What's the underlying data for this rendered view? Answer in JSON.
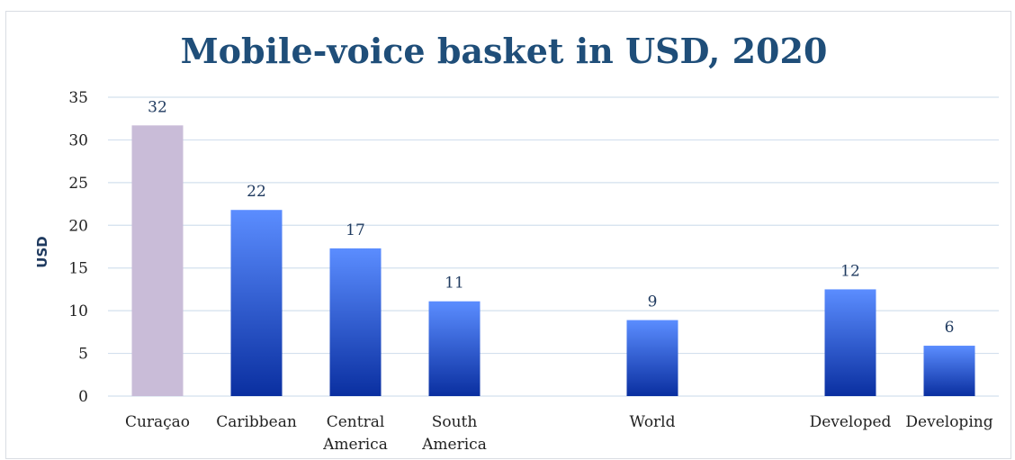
{
  "chart_data": {
    "type": "bar",
    "title": "Mobile-voice basket in USD, 2020",
    "ylabel": "USD",
    "ylim": [
      0,
      35
    ],
    "yticks": [
      0,
      5,
      10,
      15,
      20,
      25,
      30,
      35
    ],
    "grid": true,
    "categories": [
      [
        "Curaçao"
      ],
      [
        "Caribbean"
      ],
      [
        "Central",
        "America"
      ],
      [
        "South",
        "America"
      ],
      [],
      [
        "World"
      ],
      [],
      [
        "Developed"
      ],
      [
        "Developing"
      ]
    ],
    "values": [
      31.7,
      21.8,
      17.3,
      11.1,
      null,
      8.9,
      null,
      12.5,
      5.9
    ],
    "labels": [
      "32",
      "22",
      "17",
      "11",
      "",
      "9",
      "",
      "12",
      "6"
    ],
    "colors": {
      "highlight": "#c9bcd8",
      "bar_top": "#5b8dff",
      "bar_bottom": "#0a2fa0",
      "grid": "#d3e0ee",
      "title": "#1f4e79"
    },
    "highlight_index": 0
  }
}
